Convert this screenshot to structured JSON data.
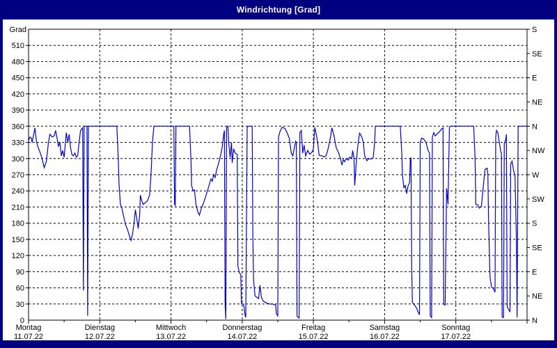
{
  "window": {
    "title": "Windrichtung [Grad]"
  },
  "colors": {
    "frame": "#000080",
    "title_text": "#ffffff",
    "plot_bg": "#ffffff",
    "line": "#0000cc",
    "grid": "#000000",
    "axis": "#000000",
    "text": "#000000"
  },
  "chart_data": {
    "type": "line",
    "title": "Windrichtung [Grad]",
    "ylabel_left": "Grad",
    "ylim": [
      0,
      540
    ],
    "y_left_tick_step": 30,
    "y_left_max_label": 510,
    "grid": "dashed",
    "legend": "none",
    "xlim_days": [
      0,
      7
    ],
    "y_right_labels": [
      {
        "value": 0,
        "label": "N"
      },
      {
        "value": 45,
        "label": "NE"
      },
      {
        "value": 90,
        "label": "E"
      },
      {
        "value": 135,
        "label": "SE"
      },
      {
        "value": 180,
        "label": "S"
      },
      {
        "value": 225,
        "label": "SW"
      },
      {
        "value": 270,
        "label": "W"
      },
      {
        "value": 315,
        "label": "NW"
      },
      {
        "value": 360,
        "label": "N"
      },
      {
        "value": 405,
        "label": "NE"
      },
      {
        "value": 450,
        "label": "E"
      },
      {
        "value": 495,
        "label": "SE"
      },
      {
        "value": 540,
        "label": "S"
      }
    ],
    "x_day_labels": [
      {
        "day": "Montag",
        "date": "11.07.22"
      },
      {
        "day": "Dienstag",
        "date": "12.07.22"
      },
      {
        "day": "Mittwoch",
        "date": "13.07.22"
      },
      {
        "day": "Donnerstag",
        "date": "14.07.22"
      },
      {
        "day": "Freitag",
        "date": "15.07.22"
      },
      {
        "day": "Samstag",
        "date": "16.07.22"
      },
      {
        "day": "Sonntag",
        "date": "17.07.22"
      }
    ],
    "series": [
      {
        "name": "Windrichtung",
        "color": "#0000cc",
        "points": [
          [
            0,
            333
          ],
          [
            0.02,
            340
          ],
          [
            0.04,
            338
          ],
          [
            0.05,
            330
          ],
          [
            0.08,
            350
          ],
          [
            0.09,
            357
          ],
          [
            0.11,
            332
          ],
          [
            0.13,
            322
          ],
          [
            0.16,
            312
          ],
          [
            0.19,
            300
          ],
          [
            0.22,
            283
          ],
          [
            0.25,
            295
          ],
          [
            0.28,
            330
          ],
          [
            0.3,
            345
          ],
          [
            0.33,
            340
          ],
          [
            0.36,
            342
          ],
          [
            0.38,
            352
          ],
          [
            0.4,
            338
          ],
          [
            0.42,
            322
          ],
          [
            0.44,
            331
          ],
          [
            0.46,
            305
          ],
          [
            0.48,
            315
          ],
          [
            0.5,
            302
          ],
          [
            0.53,
            348
          ],
          [
            0.55,
            330
          ],
          [
            0.57,
            345
          ],
          [
            0.59,
            320
          ],
          [
            0.61,
            307
          ],
          [
            0.63,
            305
          ],
          [
            0.65,
            310
          ],
          [
            0.67,
            303
          ],
          [
            0.69,
            305
          ],
          [
            0.71,
            330
          ],
          [
            0.73,
            352
          ],
          [
            0.75,
            355
          ],
          [
            0.76,
            358
          ],
          [
            0.77,
            55
          ],
          [
            0.78,
            360
          ],
          [
            0.82,
            360
          ],
          [
            0.83,
            8
          ],
          [
            0.84,
            360
          ],
          [
            1.24,
            360
          ],
          [
            1.26,
            300
          ],
          [
            1.27,
            255
          ],
          [
            1.29,
            215
          ],
          [
            1.31,
            208
          ],
          [
            1.33,
            196
          ],
          [
            1.36,
            178
          ],
          [
            1.39,
            168
          ],
          [
            1.42,
            155
          ],
          [
            1.44,
            148
          ],
          [
            1.46,
            160
          ],
          [
            1.48,
            178
          ],
          [
            1.5,
            205
          ],
          [
            1.52,
            188
          ],
          [
            1.54,
            170
          ],
          [
            1.56,
            195
          ],
          [
            1.57,
            232
          ],
          [
            1.59,
            222
          ],
          [
            1.61,
            215
          ],
          [
            1.64,
            218
          ],
          [
            1.67,
            222
          ],
          [
            1.7,
            232
          ],
          [
            1.72,
            270
          ],
          [
            1.74,
            330
          ],
          [
            1.76,
            360
          ],
          [
            2.04,
            360
          ],
          [
            2.05,
            215
          ],
          [
            2.06,
            213
          ],
          [
            2.07,
            360
          ],
          [
            2.26,
            360
          ],
          [
            2.28,
            300
          ],
          [
            2.29,
            250
          ],
          [
            2.31,
            240
          ],
          [
            2.33,
            242
          ],
          [
            2.35,
            215
          ],
          [
            2.38,
            200
          ],
          [
            2.4,
            195
          ],
          [
            2.42,
            205
          ],
          [
            2.44,
            212
          ],
          [
            2.47,
            222
          ],
          [
            2.5,
            235
          ],
          [
            2.53,
            248
          ],
          [
            2.56,
            262
          ],
          [
            2.58,
            258
          ],
          [
            2.6,
            270
          ],
          [
            2.62,
            265
          ],
          [
            2.64,
            278
          ],
          [
            2.67,
            292
          ],
          [
            2.7,
            308
          ],
          [
            2.72,
            322
          ],
          [
            2.74,
            345
          ],
          [
            2.75,
            352
          ],
          [
            2.76,
            30
          ],
          [
            2.77,
            2
          ],
          [
            2.78,
            358
          ],
          [
            2.8,
            360
          ],
          [
            2.81,
            330
          ],
          [
            2.83,
            302
          ],
          [
            2.85,
            330
          ],
          [
            2.86,
            292
          ],
          [
            2.88,
            318
          ],
          [
            2.9,
            310
          ],
          [
            2.93,
            308
          ],
          [
            2.94,
            100
          ],
          [
            2.96,
            88
          ],
          [
            2.98,
            85
          ],
          [
            2.99,
            30
          ],
          [
            3.02,
            30
          ],
          [
            3.04,
            10
          ],
          [
            3.05,
            5
          ],
          [
            3.07,
            358
          ],
          [
            3.09,
            360
          ],
          [
            3.14,
            360
          ],
          [
            3.15,
            150
          ],
          [
            3.16,
            75
          ],
          [
            3.18,
            45
          ],
          [
            3.21,
            42
          ],
          [
            3.23,
            40
          ],
          [
            3.25,
            65
          ],
          [
            3.27,
            42
          ],
          [
            3.3,
            35
          ],
          [
            3.34,
            32
          ],
          [
            3.38,
            30
          ],
          [
            3.43,
            30
          ],
          [
            3.47,
            28
          ],
          [
            3.48,
            12
          ],
          [
            3.5,
            8
          ],
          [
            3.51,
            340
          ],
          [
            3.53,
            350
          ],
          [
            3.56,
            358
          ],
          [
            3.6,
            356
          ],
          [
            3.63,
            348
          ],
          [
            3.66,
            338
          ],
          [
            3.69,
            310
          ],
          [
            3.71,
            305
          ],
          [
            3.73,
            318
          ],
          [
            3.75,
            332
          ],
          [
            3.76,
            330
          ],
          [
            3.77,
            7
          ],
          [
            3.79,
            5
          ],
          [
            3.8,
            4
          ],
          [
            3.81,
            348
          ],
          [
            3.83,
            352
          ],
          [
            3.85,
            310
          ],
          [
            3.87,
            325
          ],
          [
            3.89,
            305
          ],
          [
            3.92,
            315
          ],
          [
            3.95,
            308
          ],
          [
            3.98,
            312
          ],
          [
            4,
            318
          ],
          [
            4.01,
            340
          ],
          [
            4.02,
            358
          ],
          [
            4.04,
            345
          ],
          [
            4.06,
            330
          ],
          [
            4.08,
            306
          ],
          [
            4.12,
            305
          ],
          [
            4.15,
            303
          ],
          [
            4.18,
            306
          ],
          [
            4.21,
            320
          ],
          [
            4.24,
            340
          ],
          [
            4.26,
            357
          ],
          [
            4.29,
            342
          ],
          [
            4.32,
            320
          ],
          [
            4.35,
            312
          ],
          [
            4.38,
            300
          ],
          [
            4.4,
            288
          ],
          [
            4.42,
            298
          ],
          [
            4.44,
            294
          ],
          [
            4.46,
            300
          ],
          [
            4.49,
            297
          ],
          [
            4.51,
            303
          ],
          [
            4.54,
            300
          ],
          [
            4.55,
            315
          ],
          [
            4.57,
            302
          ],
          [
            4.58,
            250
          ],
          [
            4.6,
            288
          ],
          [
            4.62,
            320
          ],
          [
            4.64,
            340
          ],
          [
            4.65,
            347
          ],
          [
            4.68,
            340
          ],
          [
            4.7,
            331
          ],
          [
            4.72,
            305
          ],
          [
            4.75,
            296
          ],
          [
            4.78,
            300
          ],
          [
            4.81,
            299
          ],
          [
            4.84,
            302
          ],
          [
            4.86,
            330
          ],
          [
            4.87,
            360
          ],
          [
            5.22,
            360
          ],
          [
            5.24,
            312
          ],
          [
            5.25,
            270
          ],
          [
            5.27,
            246
          ],
          [
            5.29,
            250
          ],
          [
            5.31,
            235
          ],
          [
            5.33,
            250
          ],
          [
            5.35,
            255
          ],
          [
            5.36,
            298
          ],
          [
            5.37,
            302
          ],
          [
            5.38,
            100
          ],
          [
            5.39,
            33
          ],
          [
            5.42,
            28
          ],
          [
            5.45,
            22
          ],
          [
            5.47,
            15
          ],
          [
            5.49,
            10
          ],
          [
            5.5,
            330
          ],
          [
            5.52,
            338
          ],
          [
            5.55,
            336
          ],
          [
            5.58,
            330
          ],
          [
            5.61,
            315
          ],
          [
            5.63,
            310
          ],
          [
            5.64,
            8
          ],
          [
            5.66,
            5
          ],
          [
            5.67,
            340
          ],
          [
            5.69,
            348
          ],
          [
            5.71,
            342
          ],
          [
            5.74,
            346
          ],
          [
            5.77,
            350
          ],
          [
            5.8,
            355
          ],
          [
            5.82,
            357
          ],
          [
            5.83,
            30
          ],
          [
            5.85,
            28
          ],
          [
            5.87,
            245
          ],
          [
            5.89,
            215
          ],
          [
            5.91,
            358
          ],
          [
            5.92,
            360
          ],
          [
            6.25,
            360
          ],
          [
            6.27,
            302
          ],
          [
            6.28,
            215
          ],
          [
            6.31,
            214
          ],
          [
            6.33,
            208
          ],
          [
            6.36,
            212
          ],
          [
            6.39,
            255
          ],
          [
            6.41,
            280
          ],
          [
            6.44,
            282
          ],
          [
            6.45,
            270
          ],
          [
            6.46,
            180
          ],
          [
            6.48,
            80
          ],
          [
            6.5,
            62
          ],
          [
            6.53,
            58
          ],
          [
            6.55,
            52
          ],
          [
            6.56,
            340
          ],
          [
            6.57,
            352
          ],
          [
            6.59,
            348
          ],
          [
            6.61,
            330
          ],
          [
            6.63,
            313
          ],
          [
            6.64,
            310
          ],
          [
            6.65,
            6
          ],
          [
            6.67,
            5
          ],
          [
            6.68,
            328
          ],
          [
            6.7,
            335
          ],
          [
            6.71,
            345
          ],
          [
            6.72,
            25
          ],
          [
            6.74,
            20
          ],
          [
            6.76,
            15
          ],
          [
            6.77,
            290
          ],
          [
            6.79,
            295
          ],
          [
            6.81,
            278
          ],
          [
            6.83,
            270
          ],
          [
            6.84,
            215
          ],
          [
            6.85,
            150
          ],
          [
            6.86,
            5
          ],
          [
            6.875,
            358
          ],
          [
            6.89,
            360
          ],
          [
            7,
            360
          ]
        ]
      }
    ]
  }
}
